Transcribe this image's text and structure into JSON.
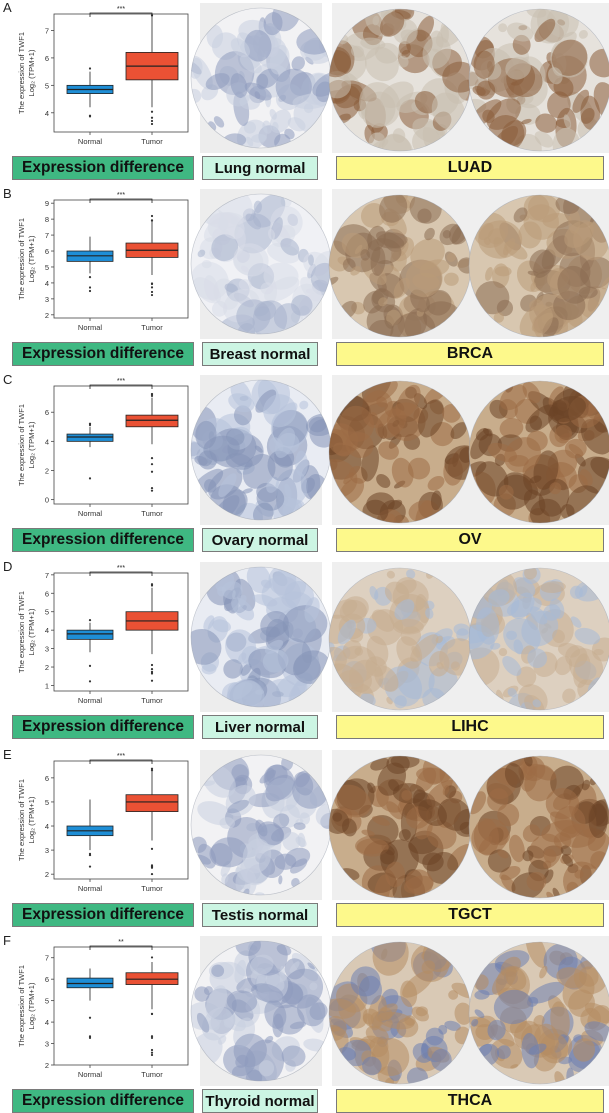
{
  "panels": [
    {
      "letter": "A",
      "diff_label": "Expression difference",
      "normal_label": "Lung normal",
      "tumor_label": "LUAD",
      "sig": "***",
      "ticks": [
        4,
        5,
        6,
        7
      ],
      "ylim": [
        3.3,
        7.6
      ],
      "normal_color": "#1e8ed6",
      "tumor_color": "#ea5134",
      "stain": {
        "normal": "lace",
        "tumor": "brown-edge"
      }
    },
    {
      "letter": "B",
      "diff_label": "Expression difference",
      "normal_label": "Breast normal",
      "tumor_label": "BRCA",
      "sig": "***",
      "ticks": [
        2,
        3,
        4,
        5,
        6,
        7,
        8,
        9
      ],
      "ylim": [
        1.8,
        9.2
      ],
      "normal_color": "#1e8ed6",
      "tumor_color": "#ea5134",
      "stain": {
        "normal": "pale",
        "tumor": "brown-medium"
      }
    },
    {
      "letter": "C",
      "diff_label": "Expression difference",
      "normal_label": "Ovary normal",
      "tumor_label": "OV",
      "sig": "***",
      "ticks": [
        0,
        2,
        4,
        6
      ],
      "ylim": [
        -0.3,
        7.8
      ],
      "normal_color": "#1e8ed6",
      "tumor_color": "#ea5134",
      "stain": {
        "normal": "blue",
        "tumor": "brown-dark"
      }
    },
    {
      "letter": "D",
      "diff_label": "Expression difference",
      "normal_label": "Liver normal",
      "tumor_label": "LIHC",
      "sig": "***",
      "ticks": [
        1,
        2,
        3,
        4,
        5,
        6,
        7
      ],
      "ylim": [
        0.7,
        7.1
      ],
      "normal_color": "#1e8ed6",
      "tumor_color": "#ea5134",
      "stain": {
        "normal": "blue",
        "tumor": "tan"
      }
    },
    {
      "letter": "E",
      "diff_label": "Expression difference",
      "normal_label": "Testis normal",
      "tumor_label": "TGCT",
      "sig": "***",
      "ticks": [
        2,
        3,
        4,
        5,
        6
      ],
      "ylim": [
        1.8,
        6.7
      ],
      "normal_color": "#1e8ed6",
      "tumor_color": "#ea5134",
      "stain": {
        "normal": "lace",
        "tumor": "brown-dark"
      }
    },
    {
      "letter": "F",
      "diff_label": "Expression difference",
      "normal_label": "Thyroid normal",
      "tumor_label": "THCA",
      "sig": "**",
      "ticks": [
        2,
        3,
        4,
        5,
        6,
        7
      ],
      "ylim": [
        2,
        7.5
      ],
      "normal_color": "#1e8ed6",
      "tumor_color": "#ea5134",
      "stain": {
        "normal": "lace",
        "tumor": "mixed"
      }
    }
  ],
  "y_label_1": "The expression of TWF1",
  "y_label_2": "Log₂ (TPM+1)",
  "x_categories": [
    "Normal",
    "Tumor"
  ],
  "chart_data": [
    {
      "type": "box",
      "title": "",
      "categories": [
        "Normal",
        "Tumor"
      ],
      "ylabel": "The expression of TWF1 Log2 (TPM+1)",
      "ylim": [
        3.3,
        7.6
      ],
      "series": [
        {
          "name": "Normal",
          "min": 4.2,
          "q1": 4.7,
          "median": 4.85,
          "q3": 5.0,
          "max": 5.5
        },
        {
          "name": "Tumor",
          "min": 4.2,
          "q1": 5.2,
          "median": 5.7,
          "q3": 6.2,
          "max": 7.5
        }
      ],
      "significance": "***"
    },
    {
      "type": "box",
      "title": "",
      "categories": [
        "Normal",
        "Tumor"
      ],
      "ylabel": "The expression of TWF1 Log2 (TPM+1)",
      "ylim": [
        1.8,
        9.2
      ],
      "series": [
        {
          "name": "Normal",
          "min": 4.6,
          "q1": 5.35,
          "median": 5.7,
          "q3": 6.0,
          "max": 6.9
        },
        {
          "name": "Tumor",
          "min": 4.5,
          "q1": 5.6,
          "median": 6.05,
          "q3": 6.5,
          "max": 7.9
        }
      ],
      "significance": "***"
    },
    {
      "type": "box",
      "title": "",
      "categories": [
        "Normal",
        "Tumor"
      ],
      "ylabel": "The expression of TWF1 Log2 (TPM+1)",
      "ylim": [
        -0.3,
        7.8
      ],
      "series": [
        {
          "name": "Normal",
          "min": 3.6,
          "q1": 4.0,
          "median": 4.3,
          "q3": 4.5,
          "max": 5.0
        },
        {
          "name": "Tumor",
          "min": 3.8,
          "q1": 5.0,
          "median": 5.45,
          "q3": 5.8,
          "max": 7.0
        }
      ],
      "significance": "***"
    },
    {
      "type": "box",
      "title": "",
      "categories": [
        "Normal",
        "Tumor"
      ],
      "ylabel": "The expression of TWF1 Log2 (TPM+1)",
      "ylim": [
        0.7,
        7.1
      ],
      "series": [
        {
          "name": "Normal",
          "min": 2.8,
          "q1": 3.5,
          "median": 3.8,
          "q3": 4.0,
          "max": 4.4
        },
        {
          "name": "Tumor",
          "min": 2.7,
          "q1": 4.0,
          "median": 4.5,
          "q3": 5.0,
          "max": 6.3
        }
      ],
      "significance": "***"
    },
    {
      "type": "box",
      "title": "",
      "categories": [
        "Normal",
        "Tumor"
      ],
      "ylabel": "The expression of TWF1 Log2 (TPM+1)",
      "ylim": [
        1.8,
        6.7
      ],
      "series": [
        {
          "name": "Normal",
          "min": 3.0,
          "q1": 3.6,
          "median": 3.8,
          "q3": 4.0,
          "max": 5.1
        },
        {
          "name": "Tumor",
          "min": 3.4,
          "q1": 4.6,
          "median": 5.0,
          "q3": 5.3,
          "max": 6.3
        }
      ],
      "significance": "***"
    },
    {
      "type": "box",
      "title": "",
      "categories": [
        "Normal",
        "Tumor"
      ],
      "ylabel": "The expression of TWF1 Log2 (TPM+1)",
      "ylim": [
        2,
        7.5
      ],
      "series": [
        {
          "name": "Normal",
          "min": 5.0,
          "q1": 5.6,
          "median": 5.8,
          "q3": 6.05,
          "max": 6.5
        },
        {
          "name": "Tumor",
          "min": 4.6,
          "q1": 5.75,
          "median": 6.0,
          "q3": 6.3,
          "max": 6.8
        }
      ],
      "significance": "**"
    }
  ]
}
